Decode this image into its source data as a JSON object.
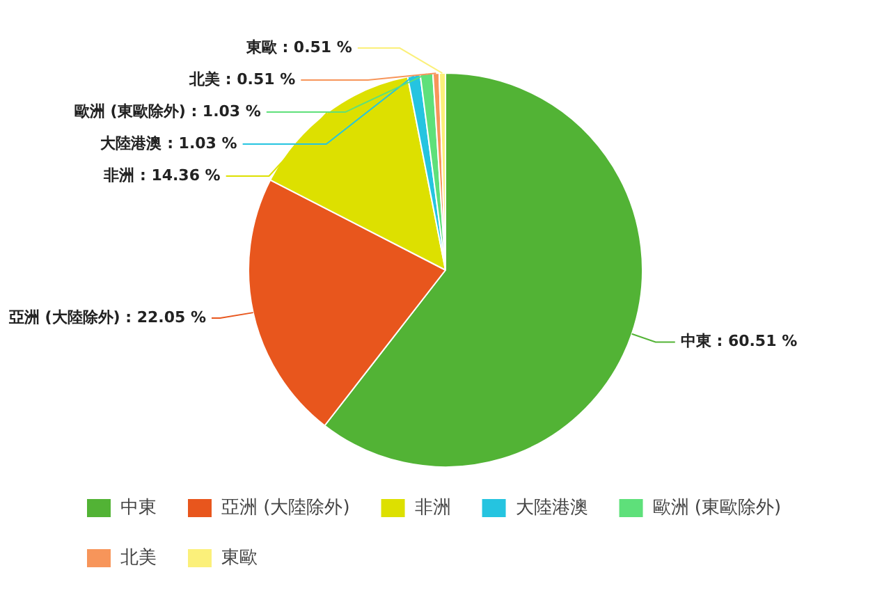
{
  "chart_data": {
    "type": "pie",
    "categories": [
      "中東",
      "亞洲 (大陸除外)",
      "非洲",
      "大陸港澳",
      "歐洲 (東歐除外)",
      "北美",
      "東歐"
    ],
    "values": [
      60.51,
      22.05,
      14.36,
      1.03,
      1.03,
      0.51,
      0.51
    ],
    "colors": [
      "#52b335",
      "#e8561d",
      "#dde000",
      "#25c4e0",
      "#5ee07a",
      "#f7955a",
      "#fbf07a"
    ],
    "value_labels": [
      "中東 : 60.51 %",
      "亞洲 (大陸除外) : 22.05 %",
      "非洲 : 14.36 %",
      "大陸港澳 : 1.03 %",
      "歐洲 (東歐除外) : 1.03 %",
      "北美 : 0.51 %",
      "東歐 : 0.51 %"
    ],
    "legend": "bottom"
  }
}
